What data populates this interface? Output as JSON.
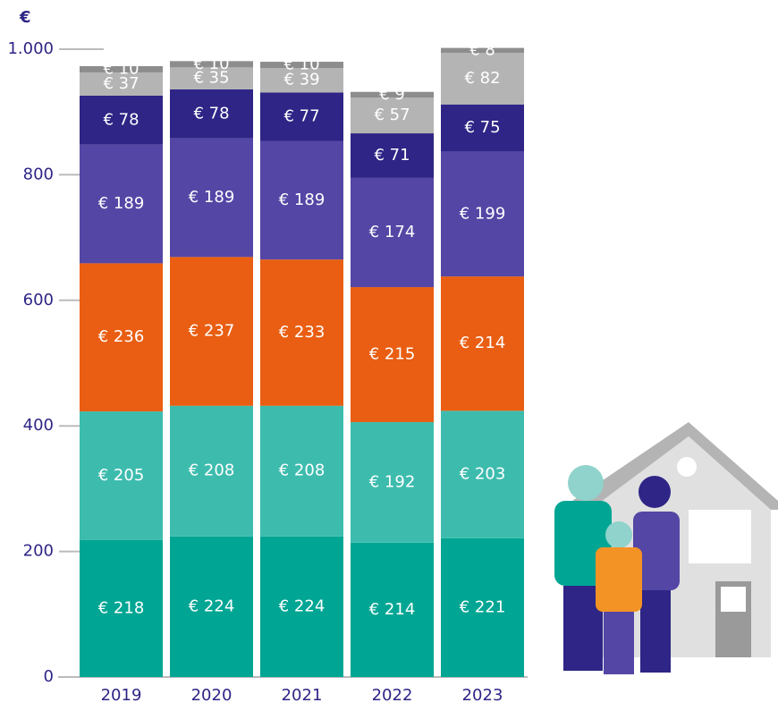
{
  "chart_data": {
    "type": "stacked-bar",
    "y_label": "€",
    "categories": [
      "2019",
      "2020",
      "2021",
      "2022",
      "2023"
    ],
    "ylim": [
      0,
      1000
    ],
    "yticks": [
      0,
      200,
      400,
      600,
      800,
      {
        "value": 1000,
        "label": "1.000"
      }
    ],
    "series": [
      {
        "color": "#00a693",
        "values": [
          218,
          224,
          224,
          214,
          221
        ],
        "value_labels": [
          "€ 218",
          "€ 224",
          "€ 224",
          "€ 214",
          "€ 221"
        ]
      },
      {
        "color": "#3dbcae",
        "values": [
          205,
          208,
          208,
          192,
          203
        ],
        "value_labels": [
          "€ 205",
          "€ 208",
          "€ 208",
          "€ 192",
          "€ 203"
        ]
      },
      {
        "color": "#e95e12",
        "values": [
          236,
          237,
          233,
          215,
          214
        ],
        "value_labels": [
          "€ 236",
          "€ 237",
          "€ 233",
          "€ 215",
          "€ 214"
        ]
      },
      {
        "color": "#5446a5",
        "values": [
          189,
          189,
          189,
          174,
          199
        ],
        "value_labels": [
          "€ 189",
          "€ 189",
          "€ 189",
          "€ 174",
          "€ 199"
        ]
      },
      {
        "color": "#2e2586",
        "values": [
          78,
          78,
          77,
          71,
          75
        ],
        "value_labels": [
          "€ 78",
          "€ 78",
          "€ 77",
          "€ 71",
          "€ 75"
        ]
      },
      {
        "color": "#b4b4b4",
        "values": [
          37,
          35,
          39,
          57,
          82
        ],
        "value_labels": [
          "€ 37",
          "€ 35",
          "€ 39",
          "€ 57",
          "€ 82"
        ]
      },
      {
        "color": "#8d8d8d",
        "values": [
          10,
          10,
          10,
          9,
          8
        ],
        "value_labels": [
          "€ 10",
          "€ 10",
          "€ 10",
          "€ 9",
          "€ 8"
        ]
      }
    ]
  }
}
